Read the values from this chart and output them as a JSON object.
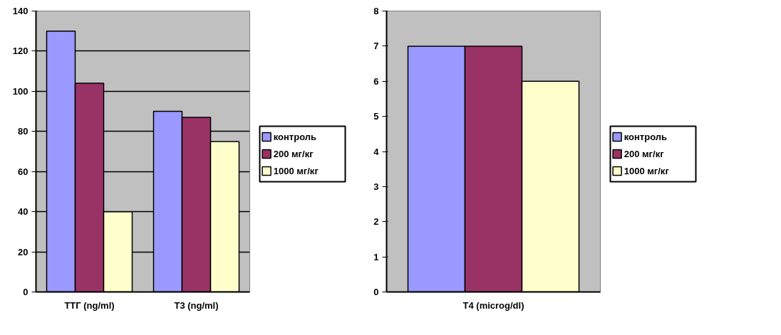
{
  "chart_data": [
    {
      "type": "bar",
      "categories": [
        "ТТГ (ng/ml)",
        "T3 (ng/ml)"
      ],
      "ylim": [
        0,
        140
      ],
      "yticks": [
        0,
        20,
        40,
        60,
        80,
        100,
        120,
        140
      ],
      "grid": "y",
      "legend": "right",
      "series": [
        {
          "name": "контроль",
          "color": "#9999ff",
          "values": [
            130,
            90
          ]
        },
        {
          "name": "200 мг/кг",
          "color": "#993366",
          "values": [
            104,
            87
          ]
        },
        {
          "name": "1000 мг/кг",
          "color": "#ffffcc",
          "values": [
            40,
            75
          ]
        }
      ]
    },
    {
      "type": "bar",
      "categories": [
        "T4 (microg/dl)"
      ],
      "ylim": [
        0,
        8
      ],
      "yticks": [
        0,
        1,
        2,
        3,
        4,
        5,
        6,
        7,
        8
      ],
      "legend": "right",
      "series": [
        {
          "name": "контроль",
          "color": "#9999ff",
          "values": [
            7
          ]
        },
        {
          "name": "200 мг/кг",
          "color": "#993366",
          "values": [
            7
          ]
        },
        {
          "name": "1000 мг/кг",
          "color": "#ffffcc",
          "values": [
            6
          ]
        }
      ]
    }
  ]
}
